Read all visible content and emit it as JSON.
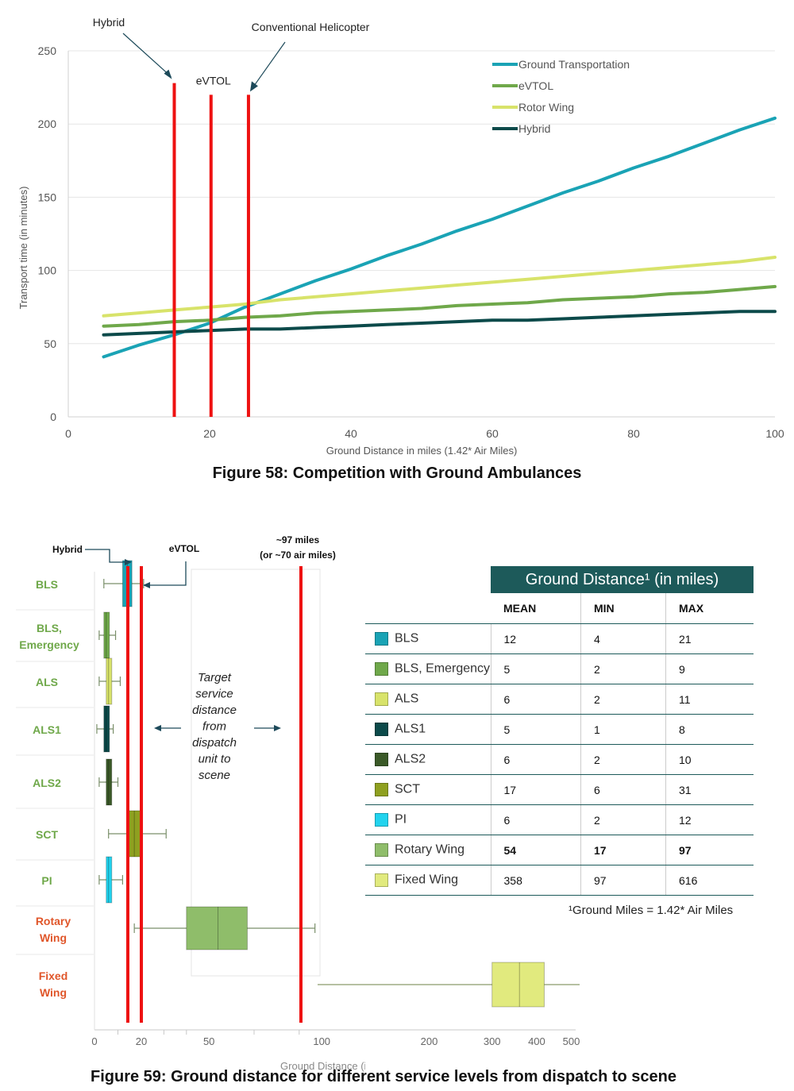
{
  "figure58": {
    "caption": "Figure 58: Competition with Ground Ambulances",
    "chart_data": {
      "type": "line",
      "xlabel": "Ground Distance in miles (1.42* Air Miles)",
      "ylabel": "Transport time (in minutes)",
      "xlim": [
        0,
        100
      ],
      "ylim": [
        0,
        250
      ],
      "xticks": [
        0,
        20,
        40,
        60,
        80,
        100
      ],
      "yticks": [
        0,
        50,
        100,
        150,
        200,
        250
      ],
      "grid": "horizontal",
      "legend_position": "top-right",
      "series": [
        {
          "name": "Ground Transportation",
          "color": "#1aa3b5",
          "x": [
            5,
            10,
            15,
            20,
            25,
            30,
            35,
            40,
            45,
            50,
            55,
            60,
            65,
            70,
            75,
            80,
            85,
            90,
            95,
            100
          ],
          "y": [
            41,
            49,
            56,
            64,
            75,
            84,
            93,
            101,
            110,
            118,
            127,
            135,
            144,
            153,
            161,
            170,
            178,
            187,
            196,
            204
          ]
        },
        {
          "name": "eVTOL",
          "color": "#6fa84a",
          "x": [
            5,
            10,
            15,
            20,
            25,
            30,
            35,
            40,
            45,
            50,
            55,
            60,
            65,
            70,
            75,
            80,
            85,
            90,
            95,
            100
          ],
          "y": [
            62,
            63,
            65,
            66,
            68,
            69,
            71,
            72,
            73,
            74,
            76,
            77,
            78,
            80,
            81,
            82,
            84,
            85,
            87,
            89
          ]
        },
        {
          "name": "Rotor Wing",
          "color": "#d8e36a",
          "x": [
            5,
            10,
            15,
            20,
            25,
            30,
            35,
            40,
            45,
            50,
            55,
            60,
            65,
            70,
            75,
            80,
            85,
            90,
            95,
            100
          ],
          "y": [
            69,
            71,
            73,
            75,
            77,
            80,
            82,
            84,
            86,
            88,
            90,
            92,
            94,
            96,
            98,
            100,
            102,
            104,
            106,
            109
          ]
        },
        {
          "name": "Hybrid",
          "color": "#0c4a4a",
          "x": [
            5,
            10,
            15,
            20,
            25,
            30,
            35,
            40,
            45,
            50,
            55,
            60,
            65,
            70,
            75,
            80,
            85,
            90,
            95,
            100
          ],
          "y": [
            56,
            57,
            58,
            59,
            60,
            60,
            61,
            62,
            63,
            64,
            65,
            66,
            66,
            67,
            68,
            69,
            70,
            71,
            72,
            72
          ]
        }
      ],
      "vertical_lines": [
        {
          "x": 15,
          "top": 228,
          "label": "Hybrid",
          "color": "#ee1111"
        },
        {
          "x": 20.2,
          "top": 220,
          "label": "eVTOL",
          "color": "#ee1111"
        },
        {
          "x": 25.5,
          "top": 220,
          "label": "Conventional Helicopter",
          "color": "#ee1111"
        }
      ]
    }
  },
  "figure59": {
    "caption": "Figure 59: Ground distance for different service levels from dispatch to scene",
    "chart_data": {
      "type": "box",
      "xlabel": "Ground Distance (in miles)",
      "x_ticks": [
        0,
        20,
        50,
        100,
        200,
        300,
        400,
        500
      ],
      "categories": [
        {
          "name": "BLS",
          "label_color": "#6fa84a",
          "color": "#1aa3b5",
          "whisker": [
            4,
            21
          ],
          "box": [
            12,
            16
          ],
          "median": 14
        },
        {
          "name": "BLS, Emergency",
          "label_color": "#6fa84a",
          "color": "#6fa84a",
          "whisker": [
            2,
            9
          ],
          "box": [
            4,
            6
          ],
          "median": 5
        },
        {
          "name": "ALS",
          "label_color": "#6fa84a",
          "color": "#d8e36a",
          "whisker": [
            2,
            11
          ],
          "box": [
            5,
            7
          ],
          "median": 6
        },
        {
          "name": "ALS1",
          "label_color": "#6fa84a",
          "color": "#0c4a4a",
          "whisker": [
            1,
            8
          ],
          "box": [
            4,
            6
          ],
          "median": 5
        },
        {
          "name": "ALS2",
          "label_color": "#6fa84a",
          "color": "#3b5a28",
          "whisker": [
            2,
            10
          ],
          "box": [
            5,
            7
          ],
          "median": 6
        },
        {
          "name": "SCT",
          "label_color": "#6fa84a",
          "color": "#8fa020",
          "whisker": [
            6,
            31
          ],
          "box": [
            14,
            20
          ],
          "median": 17
        },
        {
          "name": "PI",
          "label_color": "#6fa84a",
          "color": "#22d3ee",
          "whisker": [
            2,
            12
          ],
          "box": [
            5,
            7
          ],
          "median": 6
        },
        {
          "name": "Rotary Wing",
          "label_color": "#e0562a",
          "color": "#8fbd6a",
          "whisker": [
            17,
            97
          ],
          "box": [
            40,
            67
          ],
          "median": 54
        },
        {
          "name": "Fixed Wing",
          "label_color": "#e0562a",
          "color": "#e1ea7e",
          "whisker": [
            97,
            616
          ],
          "box": [
            300,
            420
          ],
          "median": 358
        }
      ],
      "vertical_lines": [
        {
          "label": "Hybrid",
          "color": "#ee1111"
        },
        {
          "label": "eVTOL",
          "color": "#ee1111"
        },
        {
          "label_line1": "~97 miles",
          "label_line2": "(or ~70 air miles)",
          "color": "#ee1111"
        }
      ],
      "target_text": [
        "Target",
        "service",
        "distance",
        "from",
        "dispatch",
        "unit to",
        "scene"
      ]
    },
    "table": {
      "title": "Ground Distance¹ (in miles)",
      "headers": [
        "MEAN",
        "MIN",
        "MAX"
      ],
      "rows": [
        {
          "label": "BLS",
          "color": "#1aa3b5",
          "mean": "12",
          "min": "4",
          "max": "21",
          "highlight": false
        },
        {
          "label": "BLS, Emergency",
          "color": "#6fa84a",
          "mean": "5",
          "min": "2",
          "max": "9",
          "highlight": false
        },
        {
          "label": "ALS",
          "color": "#d8e36a",
          "mean": "6",
          "min": "2",
          "max": "11",
          "highlight": false
        },
        {
          "label": "ALS1",
          "color": "#0c4a4a",
          "mean": "5",
          "min": "1",
          "max": "8",
          "highlight": false
        },
        {
          "label": "ALS2",
          "color": "#3b5a28",
          "mean": "6",
          "min": "2",
          "max": "10",
          "highlight": false
        },
        {
          "label": "SCT",
          "color": "#8fa020",
          "mean": "17",
          "min": "6",
          "max": "31",
          "highlight": false
        },
        {
          "label": "PI",
          "color": "#22d3ee",
          "mean": "6",
          "min": "2",
          "max": "12",
          "highlight": false
        },
        {
          "label": "Rotary Wing",
          "color": "#8fbd6a",
          "mean": "54",
          "min": "17",
          "max": "97",
          "highlight": true
        },
        {
          "label": "Fixed Wing",
          "color": "#e1ea7e",
          "mean": "358",
          "min": "97",
          "max": "616",
          "highlight": false
        }
      ],
      "footnote": "¹Ground Miles = 1.42* Air Miles"
    }
  }
}
